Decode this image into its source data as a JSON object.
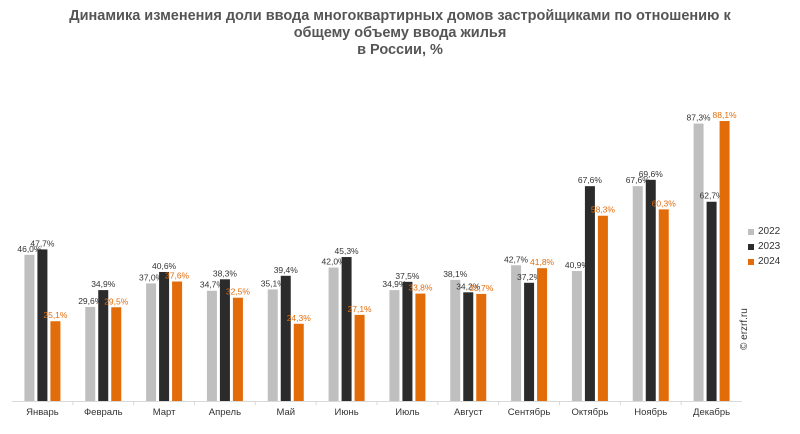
{
  "title": {
    "line1": "Динамика изменения доли ввода многоквартирных домов застройщиками по отношению к",
    "line2": "общему объему ввода жилья",
    "line3": "в России, %"
  },
  "watermark": "© erzrf.ru",
  "colors": {
    "series_2022": "#bfbfbf",
    "series_2023": "#2b2b2b",
    "series_2024": "#e36c0a",
    "label_dark": "#333333",
    "axis": "#d9d9d9"
  },
  "chart_data": {
    "type": "bar",
    "title": "Динамика изменения доли ввода многоквартирных домов застройщиками по отношению к общему объему ввода жилья в России, %",
    "xlabel": "",
    "ylabel": "",
    "ylim": [
      0,
      100
    ],
    "grid": false,
    "legend_position": "right",
    "categories": [
      "Январь",
      "Февраль",
      "Март",
      "Апрель",
      "Май",
      "Июнь",
      "Июль",
      "Август",
      "Сентябрь",
      "Октябрь",
      "Ноябрь",
      "Декабрь"
    ],
    "series": [
      {
        "name": "2022",
        "values": [
          46.0,
          29.6,
          37.0,
          34.7,
          35.1,
          42.0,
          34.9,
          38.1,
          42.7,
          40.9,
          67.6,
          87.3
        ],
        "labels": [
          "46,0%",
          "29,6%",
          "37,0%",
          "34,7%",
          "35,1%",
          "42,0%",
          "34,9%",
          "38,1%",
          "42,7%",
          "40,9%",
          "67,6%",
          "87,3%"
        ]
      },
      {
        "name": "2023",
        "values": [
          47.7,
          34.9,
          40.6,
          38.3,
          39.4,
          45.3,
          37.5,
          34.2,
          37.2,
          67.6,
          69.6,
          62.7
        ],
        "labels": [
          "47,7%",
          "34,9%",
          "40,6%",
          "38,3%",
          "39,4%",
          "45,3%",
          "37,5%",
          "34,2%",
          "37,2%",
          "67,6%",
          "69,6%",
          "62,7%"
        ]
      },
      {
        "name": "2024",
        "values": [
          25.1,
          29.5,
          37.6,
          32.5,
          24.3,
          27.1,
          33.8,
          33.7,
          41.8,
          58.3,
          60.3,
          88.1
        ],
        "labels": [
          "25,1%",
          "29,5%",
          "37,6%",
          "32,5%",
          "24,3%",
          "27,1%",
          "33,8%",
          "33,7%",
          "41,8%",
          "58,3%",
          "60,3%",
          "88,1%"
        ]
      }
    ]
  }
}
